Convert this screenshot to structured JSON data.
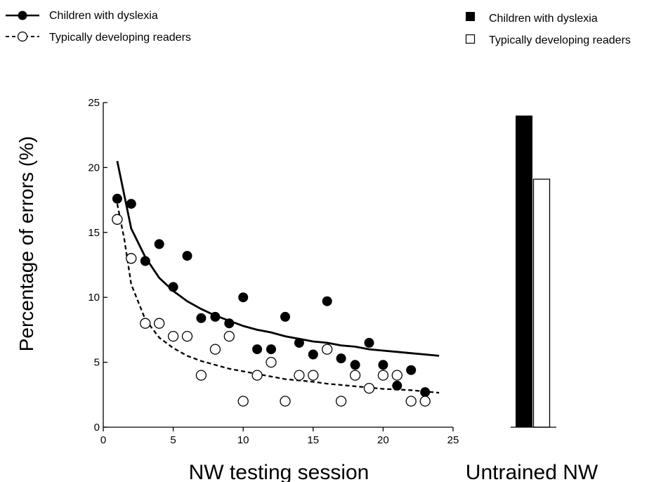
{
  "legend_left": {
    "dyslexia": "Children with dyslexia",
    "typical": "Typically developing readers"
  },
  "legend_right": {
    "dyslexia": "Children with dyslexia",
    "typical": "Typically developing readers"
  },
  "colors": {
    "dyslexia": "#000000",
    "typical": "#ffffff",
    "stroke": "#000000"
  },
  "chart_data": [
    {
      "type": "scatter",
      "xlabel": "NW testing session",
      "ylabel": "Percentage of errors  (%)",
      "xlim": [
        0,
        25
      ],
      "ylim": [
        0,
        25
      ],
      "xticks": [
        0,
        5,
        10,
        15,
        20,
        25
      ],
      "yticks": [
        0,
        5,
        10,
        15,
        20,
        25
      ],
      "legend_placement": "top-left",
      "series": [
        {
          "name": "Children with dyslexia",
          "marker": "filled-circle",
          "line": "solid",
          "x": [
            1,
            2,
            3,
            4,
            5,
            6,
            7,
            8,
            9,
            10,
            11,
            12,
            13,
            14,
            15,
            16,
            17,
            18,
            19,
            20,
            21,
            22,
            23
          ],
          "y": [
            17.6,
            17.2,
            12.8,
            14.1,
            10.8,
            13.2,
            8.4,
            8.5,
            8.0,
            10.0,
            6.0,
            6.0,
            8.5,
            6.5,
            5.6,
            9.7,
            5.3,
            4.8,
            6.5,
            4.8,
            3.2,
            4.4,
            2.7
          ]
        },
        {
          "name": "Typically developing readers",
          "marker": "open-circle",
          "line": "dashed",
          "x": [
            1,
            2,
            3,
            4,
            5,
            6,
            7,
            8,
            9,
            10,
            11,
            12,
            13,
            14,
            15,
            16,
            17,
            18,
            19,
            20,
            21,
            22,
            23
          ],
          "y": [
            16.0,
            13.0,
            8.0,
            8.0,
            7.0,
            7.0,
            4.0,
            6.0,
            7.0,
            2.0,
            4.0,
            5.0,
            2.0,
            4.0,
            4.0,
            6.0,
            2.0,
            4.0,
            3.0,
            4.0,
            4.0,
            2.0,
            2.0
          ]
        }
      ],
      "trend_lines": [
        {
          "series": "Children with dyslexia",
          "x": [
            1,
            2,
            3,
            4,
            5,
            6,
            7,
            8,
            9,
            10,
            11,
            12,
            13,
            14,
            15,
            16,
            17,
            18,
            19,
            20,
            21,
            22,
            23,
            24
          ],
          "y": [
            20.5,
            15.3,
            13.1,
            11.5,
            10.5,
            9.7,
            9.1,
            8.6,
            8.2,
            7.8,
            7.5,
            7.3,
            7.0,
            6.8,
            6.6,
            6.5,
            6.3,
            6.2,
            6.0,
            5.9,
            5.8,
            5.7,
            5.6,
            5.5
          ]
        },
        {
          "series": "Typically developing readers",
          "x": [
            1,
            1.5,
            2,
            3,
            4,
            5,
            6,
            7,
            8,
            9,
            10,
            11,
            12,
            13,
            14,
            15,
            16,
            17,
            18,
            19,
            20,
            21,
            22,
            23,
            24
          ],
          "y": [
            17.2,
            14.5,
            11.0,
            8.3,
            6.9,
            6.1,
            5.5,
            5.1,
            4.8,
            4.5,
            4.3,
            4.1,
            3.9,
            3.7,
            3.6,
            3.5,
            3.35,
            3.25,
            3.15,
            3.05,
            2.95,
            2.9,
            2.85,
            2.75,
            2.65
          ]
        }
      ]
    },
    {
      "type": "bar",
      "xlabel": "Untrained NW",
      "ylim": [
        0,
        25
      ],
      "legend_placement": "top-right",
      "series": [
        {
          "name": "Children with dyslexia",
          "values": [
            24.0
          ],
          "fill": "black"
        },
        {
          "name": "Typically developing readers",
          "values": [
            19.1
          ],
          "fill": "white"
        }
      ]
    }
  ]
}
